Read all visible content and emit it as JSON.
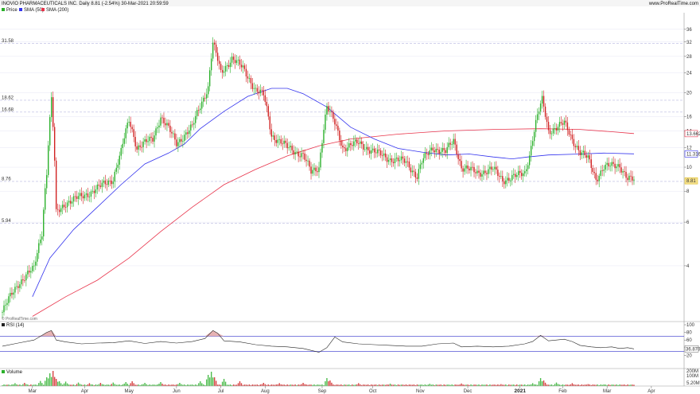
{
  "header": {
    "title": "INOVIO PHARMACEUTICALS INC. Daily 8.81 (-2.54%) 30-Mar-2021 20:59:59",
    "brand": "www.ProRealTime.com"
  },
  "legend": {
    "price": "Price",
    "sma50": "SMA (50)",
    "sma200": "SMA (200)"
  },
  "watermark": "© ProRealTime.com",
  "rsi_label": "RSI (14)",
  "volume_label": "Volume",
  "colors": {
    "up": "#2bb02b",
    "down": "#d02020",
    "sma50": "#3333ee",
    "sma200": "#e8334a",
    "grid": "#b8b8e0",
    "rsi_line": "#222222",
    "rsi_band": "#3333cc",
    "rsi_fill": "#e0a0a0"
  },
  "chart_data": [
    {
      "type": "candlestick",
      "title": "INOVIO PHARMACEUTICALS INC. Daily 8.81 (-2.54%) 30-Mar-2021 20:59:59",
      "y_scale": "log",
      "ylim": [
        2.4,
        42
      ],
      "y_ticks": [
        "36",
        "32",
        "28",
        "24",
        "20",
        "16",
        "14",
        "12",
        "10",
        "8",
        "6",
        "4"
      ],
      "x_ticks": [
        "Mar",
        "Apr",
        "May",
        "Jun",
        "Jul",
        "Aug",
        "Sep",
        "Oct",
        "Nov",
        "Dec",
        "2021",
        "Feb",
        "Mar",
        "Apr"
      ],
      "levels": [
        {
          "value": 31.58,
          "label": "31.58"
        },
        {
          "value": 18.62,
          "label": "18.62"
        },
        {
          "value": 16.68,
          "label": "16.68"
        },
        {
          "value": 8.76,
          "label": "8.76"
        },
        {
          "value": 5.94,
          "label": "5.94"
        }
      ],
      "price_tags": [
        {
          "name": "Price",
          "value": 8.81,
          "label": "8.81"
        },
        {
          "name": "SMA (50)",
          "value": 11.316,
          "label": "11.316"
        },
        {
          "name": "SMA (200)",
          "value": 13.662,
          "label": "13.662"
        }
      ],
      "price_path": [
        [
          0,
          2.6
        ],
        [
          10,
          3.4
        ],
        [
          20,
          3.9
        ],
        [
          25,
          5.5
        ],
        [
          28,
          9.5
        ],
        [
          31,
          18.6
        ],
        [
          34,
          6.5
        ],
        [
          40,
          7.2
        ],
        [
          50,
          7.6
        ],
        [
          60,
          8.2
        ],
        [
          70,
          9.0
        ],
        [
          75,
          11.5
        ],
        [
          80,
          15.5
        ],
        [
          85,
          12.0
        ],
        [
          95,
          13.0
        ],
        [
          100,
          16.0
        ],
        [
          110,
          12.5
        ],
        [
          120,
          14.5
        ],
        [
          130,
          21.0
        ],
        [
          133,
          31.5
        ],
        [
          138,
          24.0
        ],
        [
          145,
          27.5
        ],
        [
          152,
          25.0
        ],
        [
          160,
          20.5
        ],
        [
          165,
          19.5
        ],
        [
          170,
          13.5
        ],
        [
          180,
          12.0
        ],
        [
          190,
          11.2
        ],
        [
          195,
          9.5
        ],
        [
          200,
          10.0
        ],
        [
          205,
          17.5
        ],
        [
          210,
          15.0
        ],
        [
          215,
          12.0
        ],
        [
          225,
          12.5
        ],
        [
          235,
          11.5
        ],
        [
          245,
          10.8
        ],
        [
          255,
          10.5
        ],
        [
          262,
          9.2
        ],
        [
          265,
          10.5
        ],
        [
          272,
          12.0
        ],
        [
          280,
          11.5
        ],
        [
          285,
          12.8
        ],
        [
          290,
          10.0
        ],
        [
          300,
          9.5
        ],
        [
          310,
          9.8
        ],
        [
          316,
          8.9
        ],
        [
          325,
          9.2
        ],
        [
          330,
          9.5
        ],
        [
          333,
          11.2
        ],
        [
          338,
          16.0
        ],
        [
          341,
          18.6
        ],
        [
          345,
          14.0
        ],
        [
          355,
          15.0
        ],
        [
          360,
          13.0
        ],
        [
          365,
          11.5
        ],
        [
          370,
          10.8
        ],
        [
          375,
          9.0
        ],
        [
          380,
          10.0
        ],
        [
          390,
          10.2
        ],
        [
          395,
          9.0
        ],
        [
          399,
          8.81
        ]
      ],
      "sma50_path": [
        [
          19,
          3.0
        ],
        [
          30,
          4.3
        ],
        [
          45,
          5.6
        ],
        [
          60,
          6.9
        ],
        [
          75,
          8.5
        ],
        [
          90,
          10.3
        ],
        [
          105,
          11.4
        ],
        [
          115,
          12.4
        ],
        [
          125,
          14.3
        ],
        [
          140,
          16.8
        ],
        [
          155,
          19.3
        ],
        [
          170,
          20.8
        ],
        [
          180,
          20.8
        ],
        [
          190,
          19.8
        ],
        [
          205,
          17.5
        ],
        [
          220,
          14.5
        ],
        [
          235,
          13.0
        ],
        [
          250,
          11.9
        ],
        [
          265,
          11.5
        ],
        [
          280,
          11.2
        ],
        [
          295,
          11.3
        ],
        [
          310,
          11.0
        ],
        [
          322,
          10.8
        ],
        [
          332,
          11.0
        ],
        [
          345,
          11.2
        ],
        [
          365,
          11.3
        ],
        [
          380,
          11.4
        ],
        [
          399,
          11.316
        ]
      ],
      "sma200_path": [
        [
          19,
          2.5
        ],
        [
          40,
          3.0
        ],
        [
          60,
          3.5
        ],
        [
          80,
          4.3
        ],
        [
          100,
          5.5
        ],
        [
          120,
          6.9
        ],
        [
          140,
          8.5
        ],
        [
          160,
          9.8
        ],
        [
          180,
          11.1
        ],
        [
          200,
          12.2
        ],
        [
          220,
          13.0
        ],
        [
          250,
          13.6
        ],
        [
          280,
          14.0
        ],
        [
          310,
          14.2
        ],
        [
          340,
          14.3
        ],
        [
          365,
          14.2
        ],
        [
          385,
          13.9
        ],
        [
          399,
          13.662
        ]
      ]
    },
    {
      "type": "line",
      "name": "RSI (14)",
      "ylim": [
        0,
        100
      ],
      "y_ticks": [
        "100",
        "80",
        "60",
        "40",
        "20"
      ],
      "bands": [
        70,
        30
      ],
      "last_value": "36.870",
      "rsi_path": [
        [
          0,
          44
        ],
        [
          10,
          52
        ],
        [
          20,
          60
        ],
        [
          25,
          72
        ],
        [
          28,
          80
        ],
        [
          31,
          85
        ],
        [
          34,
          60
        ],
        [
          40,
          55
        ],
        [
          50,
          50
        ],
        [
          60,
          52
        ],
        [
          70,
          53
        ],
        [
          80,
          58
        ],
        [
          90,
          51
        ],
        [
          100,
          56
        ],
        [
          110,
          52
        ],
        [
          120,
          56
        ],
        [
          128,
          64
        ],
        [
          133,
          85
        ],
        [
          136,
          78
        ],
        [
          140,
          58
        ],
        [
          150,
          55
        ],
        [
          160,
          48
        ],
        [
          170,
          44
        ],
        [
          180,
          42
        ],
        [
          190,
          38
        ],
        [
          200,
          28
        ],
        [
          205,
          40
        ],
        [
          210,
          68
        ],
        [
          215,
          55
        ],
        [
          225,
          50
        ],
        [
          235,
          48
        ],
        [
          245,
          46
        ],
        [
          255,
          44
        ],
        [
          265,
          44
        ],
        [
          275,
          50
        ],
        [
          285,
          52
        ],
        [
          290,
          42
        ],
        [
          300,
          44
        ],
        [
          310,
          42
        ],
        [
          320,
          44
        ],
        [
          330,
          50
        ],
        [
          335,
          56
        ],
        [
          340,
          72
        ],
        [
          345,
          58
        ],
        [
          355,
          62
        ],
        [
          360,
          56
        ],
        [
          365,
          46
        ],
        [
          372,
          42
        ],
        [
          378,
          40
        ],
        [
          385,
          42
        ],
        [
          390,
          38
        ],
        [
          395,
          40
        ],
        [
          399,
          36.87
        ]
      ]
    },
    {
      "type": "bar",
      "name": "Volume",
      "y_ticks": [
        "200M",
        "100M"
      ],
      "last_value": "5.20M",
      "volume_spikes": [
        [
          8,
          0.18
        ],
        [
          14,
          0.2
        ],
        [
          24,
          0.32
        ],
        [
          28,
          0.55
        ],
        [
          30,
          0.8
        ],
        [
          32,
          0.95
        ],
        [
          34,
          0.45
        ],
        [
          36,
          0.3
        ],
        [
          40,
          0.28
        ],
        [
          48,
          0.22
        ],
        [
          55,
          0.18
        ],
        [
          62,
          0.2
        ],
        [
          70,
          0.22
        ],
        [
          78,
          0.25
        ],
        [
          82,
          0.3
        ],
        [
          90,
          0.2
        ],
        [
          100,
          0.25
        ],
        [
          112,
          0.2
        ],
        [
          125,
          0.3
        ],
        [
          130,
          0.7
        ],
        [
          132,
          0.9
        ],
        [
          134,
          0.55
        ],
        [
          140,
          0.45
        ],
        [
          150,
          0.3
        ],
        [
          165,
          0.2
        ],
        [
          175,
          0.18
        ],
        [
          190,
          0.2
        ],
        [
          205,
          0.5
        ],
        [
          207,
          0.35
        ],
        [
          225,
          0.18
        ],
        [
          245,
          0.15
        ],
        [
          270,
          0.14
        ],
        [
          290,
          0.16
        ],
        [
          315,
          0.12
        ],
        [
          335,
          0.18
        ],
        [
          340,
          0.5
        ],
        [
          342,
          0.35
        ],
        [
          350,
          0.22
        ],
        [
          360,
          0.18
        ],
        [
          370,
          0.12
        ],
        [
          380,
          0.1
        ],
        [
          390,
          0.1
        ],
        [
          399,
          0.08
        ]
      ]
    }
  ]
}
